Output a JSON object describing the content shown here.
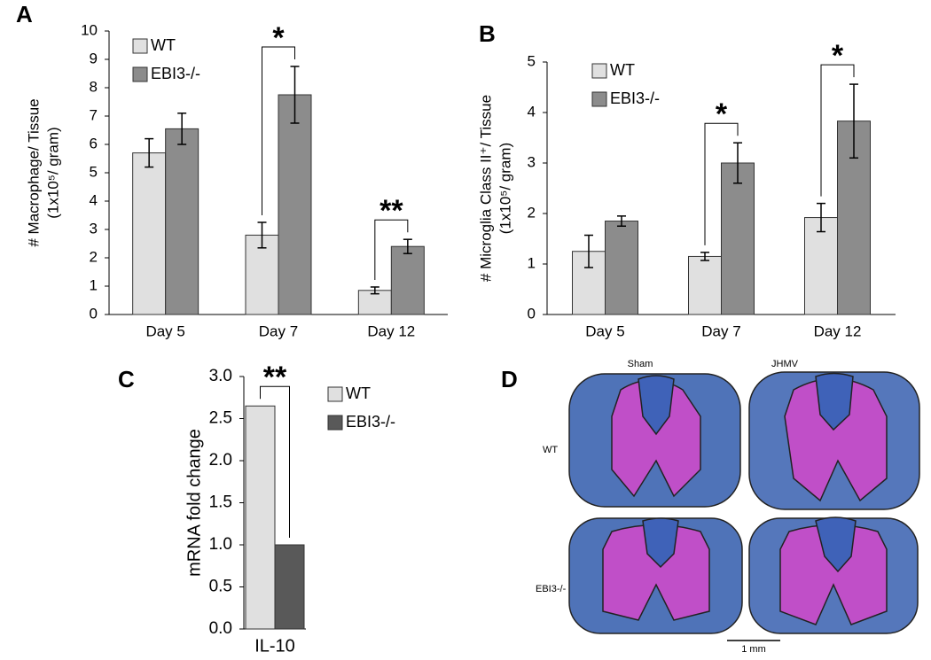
{
  "chart_data": [
    {
      "type": "bar",
      "panel": "A",
      "ylabel": [
        "# Macrophage/ Tissue",
        "(1x10⁵/ gram)"
      ],
      "categories": [
        "Day 5",
        "Day 7",
        "Day 12"
      ],
      "series": [
        {
          "name": "WT",
          "color": "#e0e0e0",
          "values": [
            5.7,
            2.8,
            0.85
          ],
          "errors": [
            0.5,
            0.45,
            0.12
          ]
        },
        {
          "name": "EBI3-/-",
          "color": "#8c8c8c",
          "values": [
            6.55,
            7.75,
            2.4
          ],
          "errors": [
            0.55,
            1.0,
            0.25
          ]
        }
      ],
      "significance": [
        null,
        "*",
        "**"
      ],
      "ylim": [
        0,
        10
      ],
      "yticks": [
        0,
        1,
        2,
        3,
        4,
        5,
        6,
        7,
        8,
        9,
        10
      ]
    },
    {
      "type": "bar",
      "panel": "B",
      "ylabel": [
        "# Microglia Class II⁺/ Tissue",
        "(1x10⁵/ gram)"
      ],
      "categories": [
        "Day 5",
        "Day 7",
        "Day 12"
      ],
      "series": [
        {
          "name": "WT",
          "color": "#e0e0e0",
          "values": [
            1.25,
            1.15,
            1.92
          ],
          "errors": [
            0.32,
            0.08,
            0.28
          ]
        },
        {
          "name": "EBI3-/-",
          "color": "#8c8c8c",
          "values": [
            1.85,
            3.0,
            3.83
          ],
          "errors": [
            0.1,
            0.4,
            0.73
          ]
        }
      ],
      "significance": [
        null,
        "*",
        "*"
      ],
      "ylim": [
        0,
        5
      ],
      "yticks": [
        0,
        1,
        2,
        3,
        4,
        5
      ]
    },
    {
      "type": "bar",
      "panel": "C",
      "ylabel": [
        "mRNA fold change"
      ],
      "categories": [
        "IL-10"
      ],
      "series": [
        {
          "name": "WT",
          "color": "#e0e0e0",
          "values": [
            2.65
          ]
        },
        {
          "name": "EBI3-/-",
          "color": "#595959",
          "values": [
            1.0
          ]
        }
      ],
      "significance": [
        "**"
      ],
      "ylim": [
        0,
        3
      ],
      "yticks": [
        {
          "value": 0,
          "label": "0.0"
        },
        {
          "value": 0.5,
          "label": "0.5"
        },
        {
          "value": 1,
          "label": "1.0"
        },
        {
          "value": 1.5,
          "label": "1.5"
        },
        {
          "value": 2,
          "label": "2.0"
        },
        {
          "value": 2.5,
          "label": "2.5"
        },
        {
          "value": 3,
          "label": "3.0"
        }
      ]
    }
  ],
  "micrographs": {
    "panel": "D",
    "columns": [
      "Sham",
      "JHMV"
    ],
    "rows": [
      "WT",
      "EBI3-/-"
    ],
    "scale_bar": "1 mm"
  }
}
